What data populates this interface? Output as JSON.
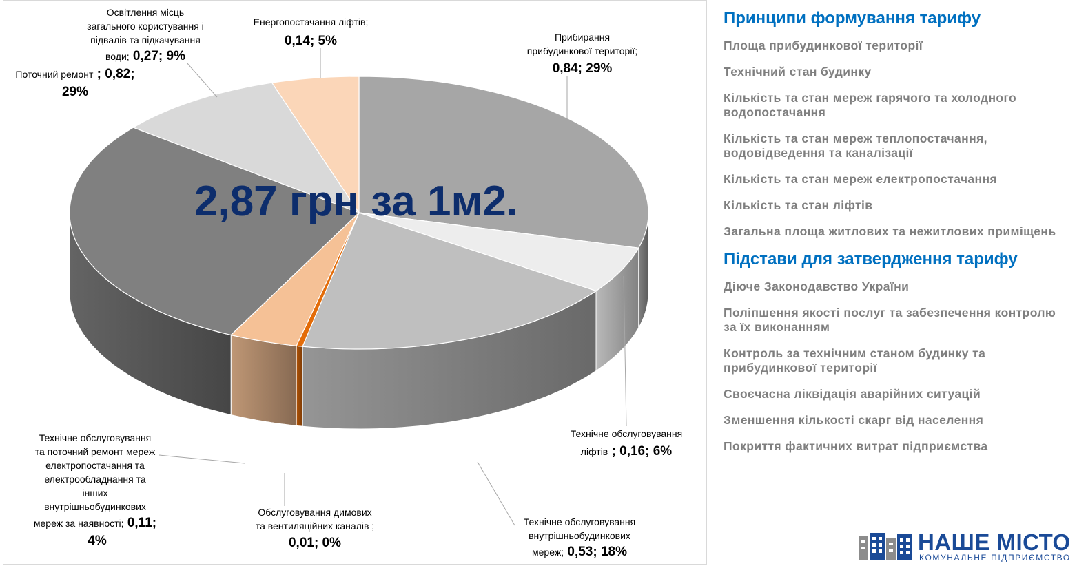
{
  "chart_data": {
    "type": "pie",
    "style": "3d",
    "center_label": "2,87 грн за 1м2.",
    "slices": [
      {
        "name": "Прибирання прибудинкової території;",
        "value": 0.84,
        "percent": "29%",
        "label_val": "0,84; 29%",
        "color": "#a6a6a6"
      },
      {
        "name": "Технічне обслуговування ліфтів",
        "value": 0.16,
        "percent": "6%",
        "label_val": " ; 0,16; 6%",
        "color": "#ededed"
      },
      {
        "name": "Технічне обслуговування внутрішньобудинкових мереж;",
        "value": 0.53,
        "percent": "18%",
        "label_val": "0,53; 18%",
        "color": "#bfbfbf"
      },
      {
        "name": "Обслуговування димових та вентиляційних каналів ;",
        "value": 0.01,
        "percent": "0%",
        "label_val": "0,01; 0%",
        "color": "#e36c09"
      },
      {
        "name": "Технічне обслуговування та поточний ремонт мереж електропостачання та електрообладнання та інших внутрішньобудинкових мереж за наявності;",
        "value": 0.11,
        "percent": "4%",
        "label_val": "0,11; 4%",
        "color": "#f5c196"
      },
      {
        "name": "Поточний ремонт",
        "value": 0.82,
        "percent": "29%",
        "label_val": "; 0,82; 29%",
        "color": "#808080"
      },
      {
        "name": "Освітлення місць загального користування і підвалів та підкачування води;",
        "value": 0.27,
        "percent": "9%",
        "label_val": "0,27; 9%",
        "color": "#d9d9d9"
      },
      {
        "name": "Енергопостачання ліфтів;",
        "value": 0.14,
        "percent": "5%",
        "label_val": "0,14; 5%",
        "color": "#fbd6b8"
      }
    ]
  },
  "principles": {
    "title": "Принципи формування тарифу",
    "items": [
      "Площа прибудинкової території",
      "Технічний стан будинку",
      "Кількість та стан мереж гарячого та холодного водопостачання",
      "Кількість та стан мереж теплопостачання, водовідведення та каналізації",
      "Кількість та стан мереж електропостачання",
      "Кількість та стан ліфтів",
      "Загальна площа житлових та нежитлових приміщень"
    ]
  },
  "grounds": {
    "title": "Підстави для затвердження тарифу",
    "items": [
      "Діюче Законодавство України",
      "Поліпшення якості послуг та забезпечення контролю за їх виконанням",
      "Контроль за технічним станом будинку та прибудинкової території",
      "Своєчасна ліквідація аварійних ситуацій",
      "Зменшення кількості скарг від населення",
      "Покриття фактичних витрат підприємства"
    ]
  },
  "logo": {
    "title": "НАШЕ МІСТО",
    "subtitle": "КОМУНАЛЬНЕ ПІДПРИЄМСТВО",
    "colors": {
      "blue": "#1a4a97",
      "gray": "#8c8c8c"
    }
  }
}
